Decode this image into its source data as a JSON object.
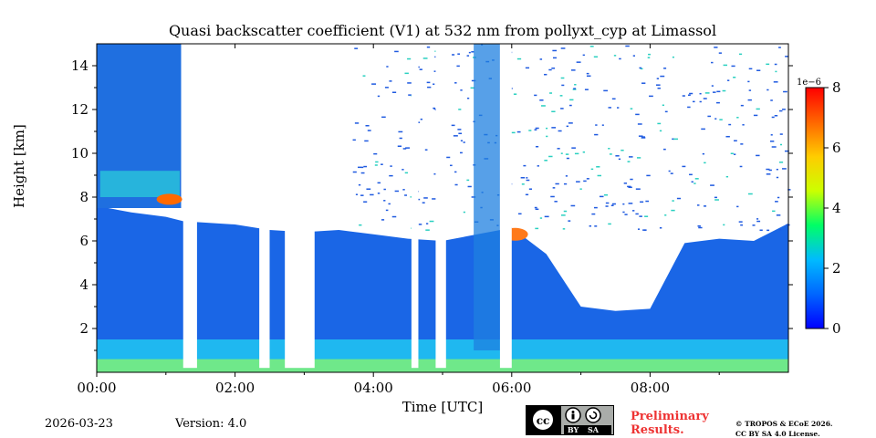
{
  "chart_data": {
    "type": "heatmap",
    "title": "Quasi backscatter coefficient (V1) at 532 nm from pollyxt_cyp at Limassol",
    "xlabel": "Time [UTC]",
    "ylabel": "Height [km]",
    "xlim_hours": [
      0,
      10
    ],
    "ylim_km": [
      0,
      15
    ],
    "x_ticks": [
      {
        "value": 0,
        "label": "00:00"
      },
      {
        "value": 2,
        "label": "02:00"
      },
      {
        "value": 4,
        "label": "04:00"
      },
      {
        "value": 6,
        "label": "06:00"
      },
      {
        "value": 8,
        "label": "08:00"
      }
    ],
    "y_ticks": [
      {
        "value": 2,
        "label": "2"
      },
      {
        "value": 4,
        "label": "4"
      },
      {
        "value": 6,
        "label": "6"
      },
      {
        "value": 8,
        "label": "8"
      },
      {
        "value": 10,
        "label": "10"
      },
      {
        "value": 12,
        "label": "12"
      },
      {
        "value": 14,
        "label": "14"
      }
    ],
    "colorbar": {
      "range": [
        0,
        8
      ],
      "exponent_label": "1e−6",
      "ticks": [
        {
          "value": 0,
          "label": "0"
        },
        {
          "value": 2,
          "label": "2"
        },
        {
          "value": 4,
          "label": "4"
        },
        {
          "value": 6,
          "label": "6"
        },
        {
          "value": 8,
          "label": "8"
        }
      ],
      "colormap": [
        "#0000ff",
        "#0066ff",
        "#00bbff",
        "#00ff66",
        "#ccff00",
        "#ffcc00",
        "#ff6600",
        "#ff0000"
      ]
    },
    "cloud_top_profile": [
      {
        "t": 0.0,
        "top_km": 7.6
      },
      {
        "t": 0.5,
        "top_km": 7.3
      },
      {
        "t": 1.0,
        "top_km": 7.1
      },
      {
        "t": 1.25,
        "top_km": 6.9
      },
      {
        "t": 1.5,
        "top_km": 6.85
      },
      {
        "t": 2.0,
        "top_km": 6.75
      },
      {
        "t": 2.5,
        "top_km": 6.5
      },
      {
        "t": 3.0,
        "top_km": 6.4
      },
      {
        "t": 3.5,
        "top_km": 6.5
      },
      {
        "t": 4.0,
        "top_km": 6.3
      },
      {
        "t": 4.5,
        "top_km": 6.1
      },
      {
        "t": 5.0,
        "top_km": 6.0
      },
      {
        "t": 5.5,
        "top_km": 6.3
      },
      {
        "t": 6.0,
        "top_km": 6.6
      },
      {
        "t": 6.5,
        "top_km": 5.4
      },
      {
        "t": 7.0,
        "top_km": 3.0
      },
      {
        "t": 7.5,
        "top_km": 2.8
      },
      {
        "t": 8.0,
        "top_km": 2.9
      },
      {
        "t": 8.5,
        "top_km": 5.9
      },
      {
        "t": 9.0,
        "top_km": 6.1
      },
      {
        "t": 9.5,
        "top_km": 6.0
      },
      {
        "t": 10.0,
        "top_km": 6.8
      }
    ],
    "gaps_hours": [
      {
        "from": 1.25,
        "to": 1.45
      },
      {
        "from": 2.35,
        "to": 2.5
      },
      {
        "from": 2.72,
        "to": 3.15
      },
      {
        "from": 4.55,
        "to": 4.65
      },
      {
        "from": 4.9,
        "to": 5.05
      },
      {
        "from": 5.83,
        "to": 6.0
      }
    ]
  },
  "footer": {
    "date": "2026-03-23",
    "version": "Version: 4.0",
    "license_badge_text": [
      "BY",
      "SA"
    ],
    "preliminary_line1": "Preliminary",
    "preliminary_line2": "Results.",
    "copyright_line1": "© TROPOS & ECoE 2026.",
    "copyright_line2": "CC BY SA 4.0 License."
  }
}
